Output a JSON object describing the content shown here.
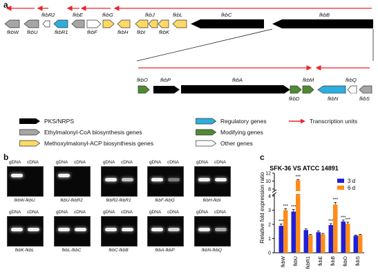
{
  "panels": {
    "a": "a",
    "b": "b",
    "c": "c"
  },
  "cluster_top": {
    "genes_top_labels": [
      "fkbR2",
      "fkbE",
      "fkbG",
      "fkbJ",
      "fkbL",
      "fkbC",
      "fkbB"
    ],
    "genes_bottom_labels": [
      "fkbW",
      "fkbU",
      "fkbR1",
      "fkbF",
      "fkbH",
      "fkbI",
      "fkbK"
    ]
  },
  "cluster_zoom": {
    "top_labels": [
      "fkbO",
      "fkbP",
      "fkbA",
      "fkbM",
      "fkbQ"
    ],
    "bottom_labels": [
      "fkbD",
      "fkbN",
      "fkbS"
    ]
  },
  "legend": {
    "pks": "PKS/NRPS",
    "ethyl": "Ethylmalonyl-CoA biosynthesis genes",
    "methoxy": "Methoxylmalonyl-ACP biosynthesis genes",
    "regulatory": "Regulatory genes",
    "modifying": "Modifying genes",
    "other": "Other genes",
    "transcription": "Transcription units"
  },
  "colors": {
    "pks": "#000000",
    "ethyl": "#a6a6a6",
    "methoxy": "#ffd966",
    "regulatory": "#2eaedc",
    "modifying": "#4f8a33",
    "other": "#ffffff",
    "transcription": "#e8262d",
    "bar_3d": "#1f1fd6",
    "bar_6d": "#ff8c1a"
  },
  "gels": [
    {
      "caption": "fkbW-fkbU"
    },
    {
      "caption": "fkbU-fkbR2"
    },
    {
      "caption": "fkbR2-fkbR1"
    },
    {
      "caption": "fkbF-fkbG"
    },
    {
      "caption": "fkbH-fkbI"
    },
    {
      "caption": "fkbK-fkbL"
    },
    {
      "caption": "fkbL-fkbC"
    },
    {
      "caption": "fkbC-fkbB"
    },
    {
      "caption": "fkbA-fkbP"
    },
    {
      "caption": "fkbN-fkbQ"
    }
  ],
  "gel_headers": {
    "gdna": "gDNA",
    "cdna": "cDNA"
  },
  "chart_data": {
    "type": "bar",
    "title": "SFK-36 VS ATCC 14891",
    "ylabel": "Relative fold expression ratio",
    "xlabel": "",
    "categories": [
      "fkbW",
      "fkbU",
      "fkbR1",
      "fkbE",
      "fkbB",
      "fkbO",
      "fkbS"
    ],
    "series": [
      {
        "name": "3 d",
        "values": [
          1.9,
          2.9,
          1.6,
          1.45,
          1.95,
          2.2,
          1.2
        ],
        "errors": [
          0.12,
          0.15,
          0.08,
          0.08,
          0.1,
          0.1,
          0.05
        ]
      },
      {
        "name": "6 d",
        "values": [
          3.0,
          10.2,
          1.25,
          1.3,
          3.4,
          2.05,
          1.25
        ],
        "errors": [
          0.1,
          0.2,
          0.05,
          0.06,
          0.15,
          0.1,
          0.05
        ]
      }
    ],
    "significance": [
      {
        "category": "fkbW",
        "series": "3 d",
        "label": "***"
      },
      {
        "category": "fkbW",
        "series": "6 d",
        "label": "***"
      },
      {
        "category": "fkbU",
        "series": "3 d",
        "label": "***"
      },
      {
        "category": "fkbU",
        "series": "6 d",
        "label": "***"
      },
      {
        "category": "fkbB",
        "series": "3 d",
        "label": "***"
      },
      {
        "category": "fkbB",
        "series": "6 d",
        "label": "***"
      },
      {
        "category": "fkbO",
        "series": "3 d",
        "label": "***"
      },
      {
        "category": "fkbO",
        "series": "6 d",
        "label": "***"
      }
    ],
    "yticks": [
      "0",
      "1",
      "2",
      "3",
      "4",
      "8",
      "10",
      "12"
    ],
    "ylim": [
      0,
      12
    ],
    "axis_break": [
      4,
      8
    ],
    "legend_position": "top-right",
    "grid": false
  }
}
